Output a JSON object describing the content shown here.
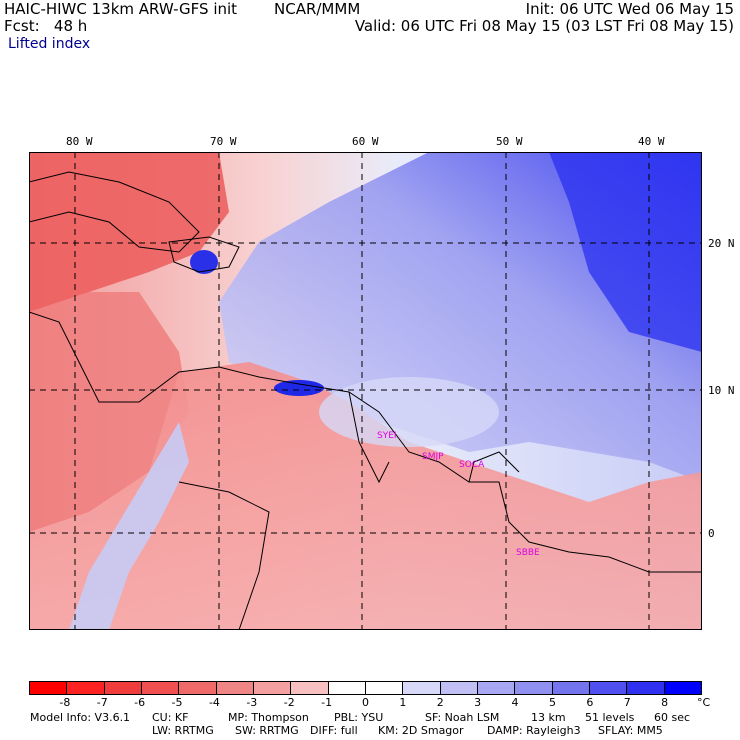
{
  "header": {
    "title_left": "HAIC-HIWC 13km ARW-GFS init",
    "title_mid": "NCAR/MMM",
    "fcst": "Fcst:   48 h",
    "field": "Lifted index",
    "init": "Init: 06 UTC Wed 06 May 15",
    "valid": "Valid: 06 UTC Fri 08 May 15 (03 LST Fri 08 May 15)"
  },
  "map": {
    "lon_labels": [
      "80 W",
      "70 W",
      "60 W",
      "50 W",
      "40 W"
    ],
    "lat_labels": [
      "20 N",
      "10 N",
      "0"
    ],
    "stations": [
      "SYEI",
      "SMJP",
      "SOCA",
      "SBBE"
    ]
  },
  "colorbar": {
    "colors": [
      "#ff0000",
      "#ff2222",
      "#f03c3c",
      "#f05050",
      "#f06a6a",
      "#f08585",
      "#f5a0a0",
      "#f8c0c0",
      "#ffffff",
      "#ffffff",
      "#d8d8f8",
      "#c0c0f5",
      "#a8a8f2",
      "#9090f0",
      "#7474ee",
      "#5050f0",
      "#3030f0",
      "#0000ff"
    ],
    "labels": [
      "-8",
      "-7",
      "-6",
      "-5",
      "-4",
      "-3",
      "-2",
      "-1",
      "0",
      "1",
      "2",
      "3",
      "4",
      "5",
      "6",
      "7",
      "8"
    ],
    "unit": "°C"
  },
  "model_info": {
    "line1": [
      "Model Info: V3.6.1",
      "CU: KF",
      "MP: Thompson",
      "PBL: YSU",
      "SF: Noah LSM",
      "13 km",
      "51 levels",
      "60 sec"
    ],
    "line2": [
      "LW: RRTMG",
      "SW: RRTMG",
      "DIFF: full",
      "KM: 2D Smagor",
      "DAMP: Rayleigh3",
      "SFLAY: MM5"
    ]
  }
}
